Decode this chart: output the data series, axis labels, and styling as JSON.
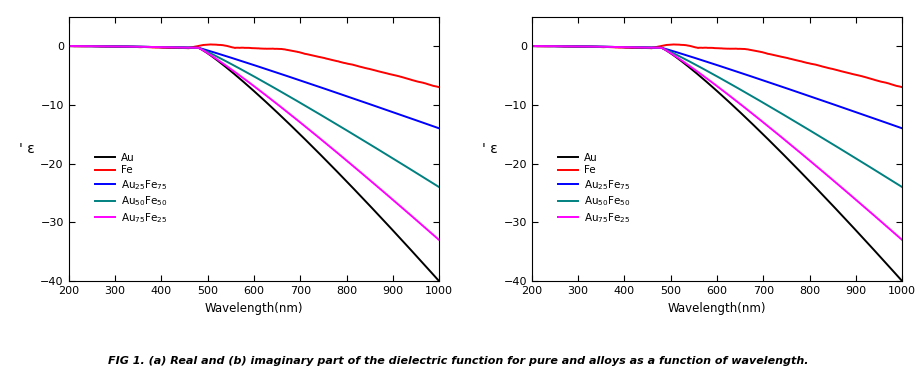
{
  "xlim": [
    200,
    1000
  ],
  "ylim": [
    -40,
    5
  ],
  "yticks": [
    0,
    -10,
    -20,
    -30,
    -40
  ],
  "xticks": [
    200,
    300,
    400,
    500,
    600,
    700,
    800,
    900,
    1000
  ],
  "xlabel": "Wavelength(nm)",
  "ylabel": "' ε",
  "caption": "FIG 1. (a) Real and (b) imaginary part of the dielectric function for pure and alloys as a function of wavelength.",
  "colors": {
    "Au": "#000000",
    "Fe": "#ff0000",
    "Au25Fe75": "#0000ff",
    "Au50Fe50": "#008080",
    "Au75Fe25": "#ff00ff"
  }
}
